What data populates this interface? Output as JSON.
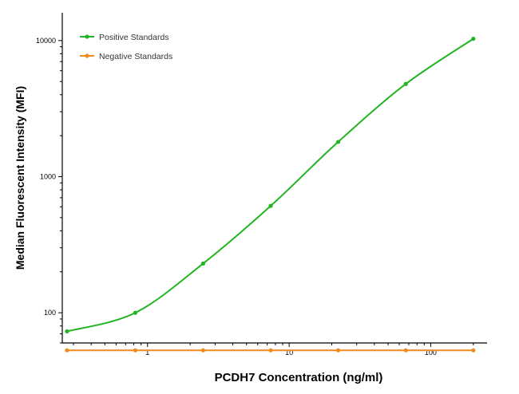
{
  "chart_data": {
    "type": "scatter",
    "xlabel": "PCDH7 Concentration (ng/ml)",
    "ylabel": "Median  Fluorescent Intensity  (MFI)",
    "x_scale": "log",
    "y_scale": "log",
    "xlim": [
      0.25,
      250
    ],
    "ylim": [
      60,
      16000
    ],
    "x_ticks": [
      1,
      10,
      100
    ],
    "x_tick_labels": [
      "1",
      "10",
      "100"
    ],
    "y_ticks": [
      100,
      1000,
      10000
    ],
    "y_tick_labels": [
      "100",
      "1000",
      "10000"
    ],
    "legend_position": "top-left",
    "series": [
      {
        "name": "Positive Standards",
        "color": "#22b422",
        "x": [
          0.27,
          0.82,
          2.47,
          7.41,
          22.2,
          66.7,
          200
        ],
        "y": [
          73,
          100,
          230,
          610,
          1800,
          4800,
          10300
        ],
        "fit": "sigmoid curve"
      },
      {
        "name": "Negative Standards",
        "color": "#f08a1e",
        "x": [
          0.27,
          0.82,
          2.47,
          7.41,
          22.2,
          66.7,
          200
        ],
        "y": [
          53,
          53,
          53,
          53,
          53,
          53,
          53
        ],
        "fit": "line"
      }
    ]
  }
}
